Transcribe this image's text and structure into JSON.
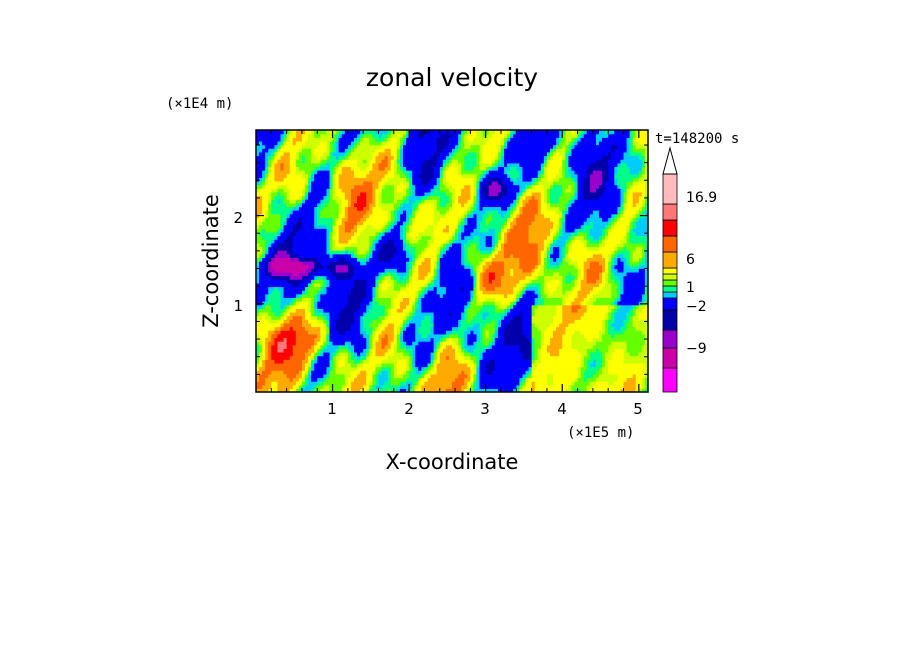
{
  "chart_data": {
    "type": "heatmap",
    "title": "zonal velocity",
    "xlabel": "X-coordinate",
    "ylabel": "Z-coordinate",
    "x_unit": "(×1E5 m)",
    "y_unit": "(×1E4 m)",
    "time_label": "t=148200 s",
    "xlim": [
      0,
      5.12
    ],
    "ylim": [
      0,
      2.97
    ],
    "x_ticks": [
      "1",
      "2",
      "3",
      "4",
      "5"
    ],
    "y_ticks": [
      "1",
      "2"
    ],
    "colorbar": {
      "labels": [
        "16.9",
        "6",
        "1",
        "−2",
        "−9"
      ],
      "levels": [
        -16,
        -12,
        -9,
        -6,
        -2,
        -1,
        0,
        1,
        2,
        4,
        6,
        9,
        12,
        16.9
      ],
      "colors": [
        "#ff00ff",
        "#cc00aa",
        "#9900cc",
        "#0000aa",
        "#0000ff",
        "#00ccff",
        "#00ff88",
        "#66ff00",
        "#ccff00",
        "#ffff00",
        "#ffaa00",
        "#ff6600",
        "#ff0000",
        "#ff7777",
        "#ffbbbb"
      ]
    }
  }
}
